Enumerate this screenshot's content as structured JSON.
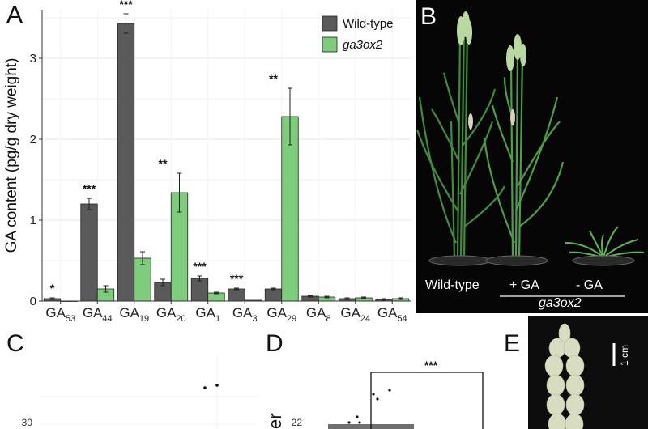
{
  "panels": {
    "A": "A",
    "B": "B",
    "C": "C",
    "D": "D",
    "E": "E"
  },
  "chart_data": [
    {
      "type": "bar",
      "panel": "A",
      "ylabel": "GA content (pg/g dry weight)",
      "ylim": [
        0,
        3.6
      ],
      "yticks": [
        0,
        1,
        2,
        3
      ],
      "grid": true,
      "legend": "top-right",
      "categories": [
        {
          "base": "GA",
          "sub": "53"
        },
        {
          "base": "GA",
          "sub": "44"
        },
        {
          "base": "GA",
          "sub": "19"
        },
        {
          "base": "GA",
          "sub": "20"
        },
        {
          "base": "GA",
          "sub": "1"
        },
        {
          "base": "GA",
          "sub": "3"
        },
        {
          "base": "GA",
          "sub": "29"
        },
        {
          "base": "GA",
          "sub": "8"
        },
        {
          "base": "GA",
          "sub": "24"
        },
        {
          "base": "GA",
          "sub": "54"
        }
      ],
      "series": [
        {
          "name": "Wild-type",
          "italic": false,
          "color": "#5a5a5a",
          "values": [
            0.03,
            1.2,
            3.43,
            0.23,
            0.28,
            0.15,
            0.15,
            0.06,
            0.03,
            0.02
          ],
          "errors": [
            0.01,
            0.07,
            0.12,
            0.04,
            0.03,
            0.01,
            0.01,
            0.01,
            0.01,
            0.01
          ]
        },
        {
          "name": "ga3ox2",
          "italic": true,
          "color": "#7dcd7d",
          "values": [
            0.0,
            0.15,
            0.53,
            1.34,
            0.1,
            0.01,
            2.28,
            0.05,
            0.04,
            0.03
          ],
          "errors": [
            0.0,
            0.04,
            0.08,
            0.24,
            0.01,
            0.0,
            0.35,
            0.01,
            0.01,
            0.01
          ]
        }
      ],
      "significance": [
        "*",
        "***",
        "***",
        "**",
        "***",
        "***",
        "**",
        "",
        "",
        ""
      ]
    },
    {
      "type": "scatter",
      "panel": "C",
      "yticks": [
        30
      ]
    },
    {
      "type": "bar",
      "panel": "D",
      "ylabel_fragment": "er",
      "yticks": [
        22
      ],
      "significance": [
        "***"
      ]
    }
  ],
  "photo_b": {
    "labels": {
      "wild_type": "Wild-type",
      "plus_ga": "+ GA",
      "minus_ga": "- GA",
      "mutant": "ga3ox2"
    }
  },
  "photo_e": {
    "scale": "1 cm"
  }
}
